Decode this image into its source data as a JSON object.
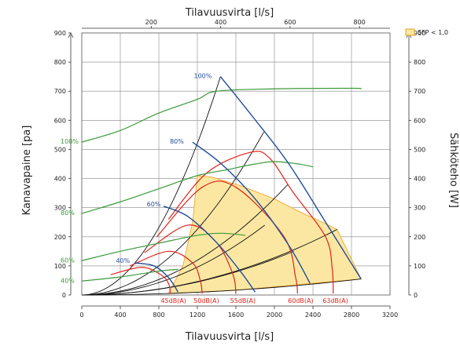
{
  "chart_data": {
    "type": "line",
    "x_bottom": {
      "label": "Tilavuusvirta [l/s]",
      "range": [
        0,
        3200
      ],
      "ticks": [
        0,
        400,
        800,
        1200,
        1600,
        2000,
        2400,
        2800,
        3200
      ]
    },
    "x_top": {
      "label": "Tilavuusvirta [l/s]",
      "range": [
        0,
        888
      ],
      "ticks": [
        200,
        400,
        600,
        800
      ]
    },
    "y_left": {
      "label": "Kanavapaine [pa]",
      "range": [
        0,
        900
      ],
      "ticks": [
        0,
        100,
        200,
        300,
        400,
        500,
        600,
        700,
        800,
        900
      ]
    },
    "y_right": {
      "label": "Sähköteho [W]",
      "range": [
        0,
        900
      ],
      "ticks": [
        0,
        100,
        200,
        300,
        400,
        500,
        600,
        700,
        800,
        900
      ]
    },
    "grid": true,
    "legend": {
      "position": "top-right",
      "label": "SFP < 1,0",
      "color": "#fbe7a1",
      "border": "#e5a623"
    },
    "sfp_region": [
      [
        1200,
        410
      ],
      [
        1350,
        405
      ],
      [
        1650,
        375
      ],
      [
        2000,
        330
      ],
      [
        2300,
        280
      ],
      [
        2500,
        250
      ],
      [
        2650,
        225
      ],
      [
        2900,
        55
      ],
      [
        1550,
        15
      ],
      [
        900,
        5
      ],
      [
        1050,
        100
      ],
      [
        1150,
        250
      ]
    ],
    "fan_curves": [
      {
        "label": "100%",
        "color": "#1f4e9c",
        "points": [
          [
            1440,
            750
          ],
          [
            1780,
            610
          ],
          [
            2150,
            450
          ],
          [
            2550,
            240
          ],
          [
            2900,
            55
          ]
        ]
      },
      {
        "label": "80%",
        "color": "#1f4e9c",
        "points": [
          [
            1150,
            525
          ],
          [
            1450,
            450
          ],
          [
            1800,
            330
          ],
          [
            2150,
            170
          ],
          [
            2370,
            40
          ]
        ]
      },
      {
        "label": "60%",
        "color": "#1f4e9c",
        "points": [
          [
            850,
            305
          ],
          [
            1100,
            270
          ],
          [
            1400,
            180
          ],
          [
            1650,
            80
          ],
          [
            1800,
            10
          ]
        ]
      },
      {
        "label": "40%",
        "color": "#1f4e9c",
        "points": [
          [
            550,
            110
          ],
          [
            750,
            100
          ],
          [
            900,
            60
          ],
          [
            1000,
            10
          ]
        ]
      }
    ],
    "system_curves": {
      "color": "#111111",
      "end_points": [
        [
          1440,
          750
        ],
        [
          1890,
          560
        ],
        [
          2140,
          380
        ],
        [
          2650,
          225
        ],
        [
          2900,
          55
        ],
        [
          1900,
          240
        ],
        [
          2200,
          150
        ]
      ]
    },
    "sound_curves": [
      {
        "label": "45dB(A)",
        "color": "#e2231a",
        "points": [
          [
            300,
            70
          ],
          [
            620,
            95
          ],
          [
            820,
            70
          ],
          [
            900,
            40
          ],
          [
            920,
            5
          ]
        ]
      },
      {
        "label": "50dB(A)",
        "color": "#e2231a",
        "points": [
          [
            500,
            100
          ],
          [
            900,
            150
          ],
          [
            1150,
            110
          ],
          [
            1230,
            50
          ],
          [
            1250,
            5
          ]
        ]
      },
      {
        "label": "55dB(A)",
        "color": "#e2231a",
        "points": [
          [
            650,
            145
          ],
          [
            1100,
            240
          ],
          [
            1400,
            180
          ],
          [
            1570,
            70
          ],
          [
            1600,
            5
          ]
        ]
      },
      {
        "label": "60dB(A)",
        "color": "#e2231a",
        "points": [
          [
            780,
            200
          ],
          [
            1250,
            370
          ],
          [
            1600,
            370
          ],
          [
            2100,
            200
          ],
          [
            2220,
            60
          ],
          [
            2240,
            5
          ]
        ]
      },
      {
        "label": "63dB(A)",
        "color": "#e2231a",
        "points": [
          [
            900,
            260
          ],
          [
            1300,
            420
          ],
          [
            1750,
            490
          ],
          [
            1950,
            470
          ],
          [
            2200,
            350
          ],
          [
            2530,
            200
          ],
          [
            2600,
            90
          ],
          [
            2610,
            5
          ]
        ]
      }
    ],
    "power_curves": [
      {
        "label": "100%",
        "color": "#3a9a3a",
        "points": [
          [
            0,
            525
          ],
          [
            400,
            565
          ],
          [
            800,
            625
          ],
          [
            1200,
            672
          ],
          [
            1400,
            700
          ],
          [
            2000,
            708
          ],
          [
            2800,
            710
          ],
          [
            2900,
            708
          ]
        ]
      },
      {
        "label": "80%",
        "color": "#3a9a3a",
        "points": [
          [
            0,
            280
          ],
          [
            400,
            320
          ],
          [
            800,
            365
          ],
          [
            1200,
            410
          ],
          [
            1500,
            430
          ],
          [
            1800,
            450
          ],
          [
            2000,
            458
          ],
          [
            2250,
            450
          ],
          [
            2400,
            440
          ]
        ]
      },
      {
        "label": "60%",
        "color": "#3a9a3a",
        "points": [
          [
            0,
            118
          ],
          [
            400,
            150
          ],
          [
            800,
            178
          ],
          [
            1200,
            205
          ],
          [
            1450,
            212
          ],
          [
            1700,
            205
          ]
        ]
      },
      {
        "label": "40%",
        "color": "#3a9a3a",
        "points": [
          [
            0,
            48
          ],
          [
            400,
            62
          ],
          [
            800,
            82
          ],
          [
            1000,
            88
          ]
        ]
      }
    ],
    "labels": {
      "fan": [
        "100%",
        "80%",
        "60%",
        "40%"
      ],
      "power": [
        "100%",
        "80%",
        "60%",
        "40%"
      ],
      "sound": [
        "45dB(A)",
        "50dB(A)",
        "55dB(A)",
        "60dB(A)",
        "63dB(A)"
      ]
    }
  }
}
